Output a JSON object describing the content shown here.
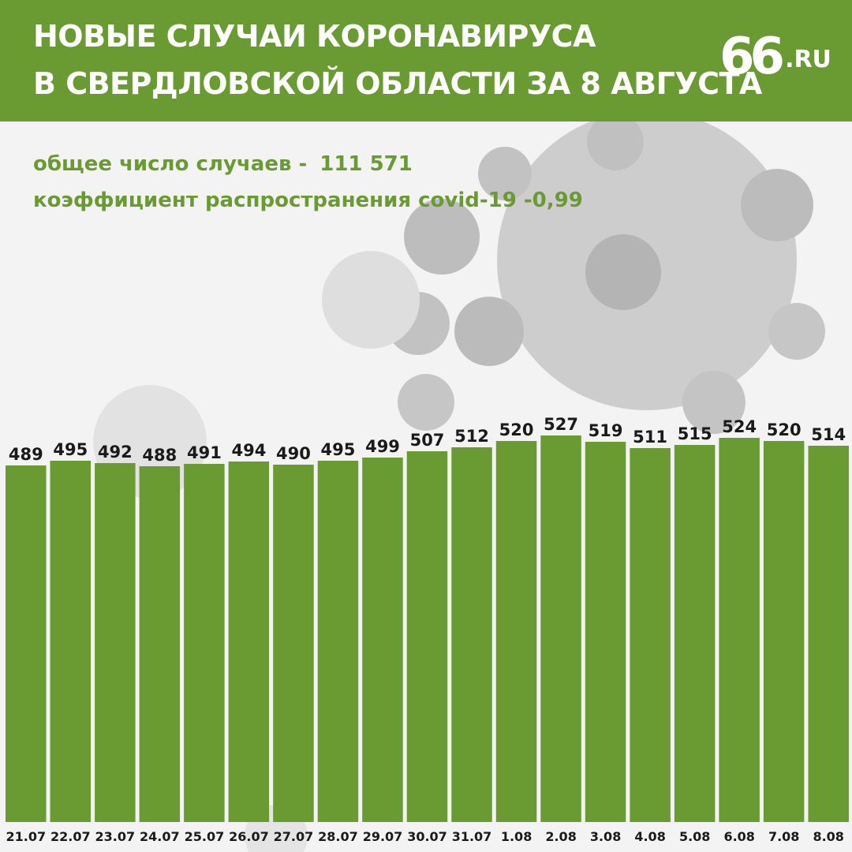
{
  "header": {
    "title_line1": "НОВЫЕ СЛУЧАИ КОРОНАВИРУСА",
    "title_line2": "В СВЕРДЛОВСКОЙ ОБЛАСТИ ЗА 8 АВГУСТА",
    "logo_number": "66",
    "logo_domain": ".RU"
  },
  "stats": {
    "total_label": "общее число случаев -",
    "total_value": "111 571",
    "rate_text": "коэффициент распространения covid-19 -0,99"
  },
  "colors": {
    "accent": "#6a9a32",
    "background": "#f3f3f3",
    "label": "#1a1a1a"
  },
  "chart_data": {
    "type": "bar",
    "categories": [
      "21.07",
      "22.07",
      "23.07",
      "24.07",
      "25.07",
      "26.07",
      "27.07",
      "28.07",
      "29.07",
      "30.07",
      "31.07",
      "1.08",
      "2.08",
      "3.08",
      "4.08",
      "5.08",
      "6.08",
      "7.08",
      "8.08"
    ],
    "values": [
      489,
      495,
      492,
      488,
      491,
      494,
      490,
      495,
      499,
      507,
      512,
      520,
      527,
      519,
      511,
      515,
      524,
      520,
      514
    ],
    "xlabel": "",
    "ylabel": "",
    "grid": false,
    "data_labels": true
  }
}
